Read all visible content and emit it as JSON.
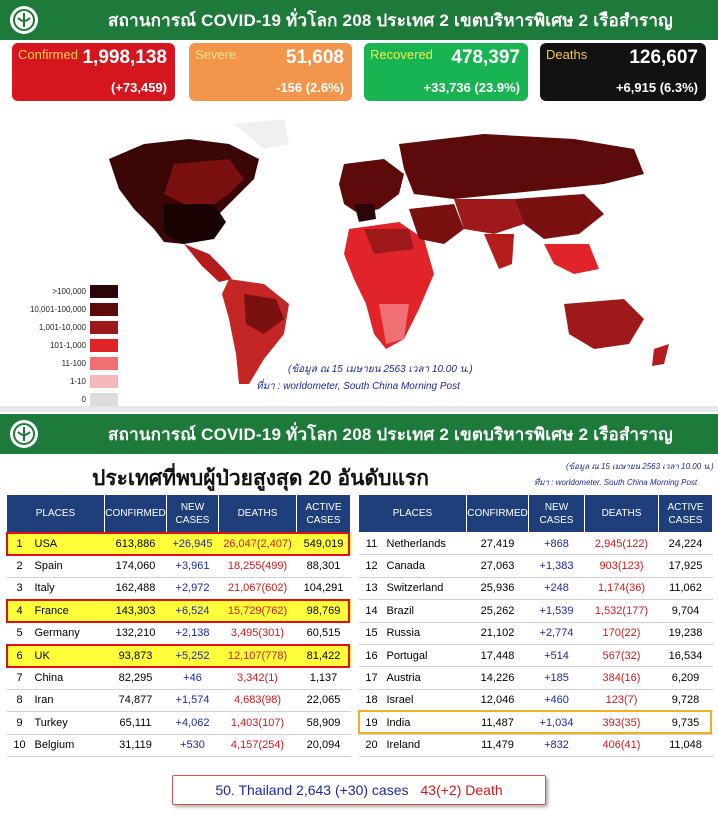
{
  "header": {
    "title": "สถานการณ์ COVID-19 ทั่วโลก 208 ประเทศ 2 เขตบริหารพิเศษ 2 เรือสำราญ"
  },
  "stats": [
    {
      "label": "Confirmed",
      "value": "1,998,138",
      "change": "(+73,459)",
      "color": "#d6161f"
    },
    {
      "label": "Severe",
      "value": "51,608",
      "change": "-156 (2.6%)",
      "color": "#f3964b"
    },
    {
      "label": "Recovered",
      "value": "478,397",
      "change": "+33,736 (23.9%)",
      "color": "#19b452"
    },
    {
      "label": "Deaths",
      "value": "126,607",
      "change": "+6,915 (6.3%)",
      "color": "#121212"
    }
  ],
  "legend": [
    {
      "label": ">100,000",
      "color": "#2b0606"
    },
    {
      "label": "10,001-100,000",
      "color": "#5c0a0a"
    },
    {
      "label": "1,001-10,000",
      "color": "#9e1a1a"
    },
    {
      "label": "101-1,000",
      "color": "#e0242a"
    },
    {
      "label": "11-100",
      "color": "#ef6f73"
    },
    {
      "label": "1-10",
      "color": "#f6b8bb"
    },
    {
      "label": "0",
      "color": "#dcdcdc"
    }
  ],
  "map_note": {
    "date": "(ข้อมูล ณ 15 เมษายน 2563 เวลา 10.00 น.)",
    "source": "ที่มา : worldometer,  South China Morning Post"
  },
  "section2": {
    "title": "สถานการณ์ COVID-19 ทั่วโลก 208 ประเทศ 2 เขตบริหารพิเศษ 2 เรือสำราญ",
    "subtitle": "ประเทศที่พบผู้ป่วยสูงสุด  20 อันดับแรก",
    "date": "(ข้อมูล ณ 15 เมษายน 2563 เวลา 10.00 น.)",
    "source": "ที่มา : worldometer,   South China Morning Post"
  },
  "table_headers": [
    "PLACES",
    "CONFIRMED",
    "NEW CASES",
    "DEATHS",
    "ACTIVE CASES"
  ],
  "table_left": [
    {
      "rank": "1",
      "place": "USA",
      "confirmed": "613,886",
      "new": "+26,945",
      "deaths": "26,047(2,407)",
      "active": "549,019",
      "hl": true
    },
    {
      "rank": "2",
      "place": "Spain",
      "confirmed": "174,060",
      "new": "+3,961",
      "deaths": "18,255(499)",
      "active": "88,301",
      "hl": false
    },
    {
      "rank": "3",
      "place": "Italy",
      "confirmed": "162,488",
      "new": "+2,972",
      "deaths": "21,067(602)",
      "active": "104,291",
      "hl": false
    },
    {
      "rank": "4",
      "place": "France",
      "confirmed": "143,303",
      "new": "+6,524",
      "deaths": "15,729(762)",
      "active": "98,769",
      "hl": true
    },
    {
      "rank": "5",
      "place": "Germany",
      "confirmed": "132,210",
      "new": "+2,138",
      "deaths": "3,495(301)",
      "active": "60,515",
      "hl": false
    },
    {
      "rank": "6",
      "place": "UK",
      "confirmed": "93,873",
      "new": "+5,252",
      "deaths": "12,107(778)",
      "active": "81,422",
      "hl": true
    },
    {
      "rank": "7",
      "place": "China",
      "confirmed": "82,295",
      "new": "+46",
      "deaths": "3,342(1)",
      "active": "1,137",
      "hl": false
    },
    {
      "rank": "8",
      "place": "Iran",
      "confirmed": "74,877",
      "new": "+1,574",
      "deaths": "4,683(98)",
      "active": "22,065",
      "hl": false
    },
    {
      "rank": "9",
      "place": "Turkey",
      "confirmed": "65,111",
      "new": "+4,062",
      "deaths": "1,403(107)",
      "active": "58,909",
      "hl": false
    },
    {
      "rank": "10",
      "place": "Belgium",
      "confirmed": "31,119",
      "new": "+530",
      "deaths": "4,157(254)",
      "active": "20,094",
      "hl": false
    }
  ],
  "table_right": [
    {
      "rank": "11",
      "place": "Netherlands",
      "confirmed": "27,419",
      "new": "+868",
      "deaths": "2,945(122)",
      "active": "24,224"
    },
    {
      "rank": "12",
      "place": "Canada",
      "confirmed": "27,063",
      "new": "+1,383",
      "deaths": "903(123)",
      "active": "17,925"
    },
    {
      "rank": "13",
      "place": "Switzerland",
      "confirmed": "25,936",
      "new": "+248",
      "deaths": "1,174(36)",
      "active": "11,062"
    },
    {
      "rank": "14",
      "place": "Brazil",
      "confirmed": "25,262",
      "new": "+1,539",
      "deaths": "1,532(177)",
      "active": "9,704"
    },
    {
      "rank": "15",
      "place": "Russia",
      "confirmed": "21,102",
      "new": "+2,774",
      "deaths": "170(22)",
      "active": "19,238"
    },
    {
      "rank": "16",
      "place": "Portugal",
      "confirmed": "17,448",
      "new": "+514",
      "deaths": "567(32)",
      "active": "16,534"
    },
    {
      "rank": "17",
      "place": "Austria",
      "confirmed": "14,226",
      "new": "+185",
      "deaths": "384(16)",
      "active": "6,209"
    },
    {
      "rank": "18",
      "place": "Israel",
      "confirmed": "12,046",
      "new": "+460",
      "deaths": "123(7)",
      "active": "9,728"
    },
    {
      "rank": "19",
      "place": "India",
      "confirmed": "11,487",
      "new": "+1,034",
      "deaths": "393(35)",
      "active": "9,735"
    },
    {
      "rank": "20",
      "place": "Ireland",
      "confirmed": "11,479",
      "new": "+832",
      "deaths": "406(41)",
      "active": "11,048"
    }
  ],
  "thailand": {
    "cases": "50. Thailand 2,643 (+30) cases",
    "death": "43(+2)  Death"
  }
}
